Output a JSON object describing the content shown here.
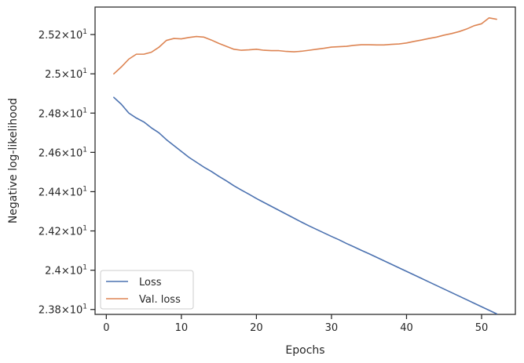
{
  "chart_data": {
    "type": "line",
    "xlabel": "Epochs",
    "ylabel": "Negative log-likelihood",
    "xlim": [
      -1.5,
      54.5
    ],
    "ylim": [
      23.775,
      25.34
    ],
    "x_ticks": [
      0,
      10,
      20,
      30,
      40,
      50
    ],
    "y_ticks": [
      {
        "value": 23.8,
        "mantissa": "2.38",
        "base": "10",
        "exp": "1"
      },
      {
        "value": 24.0,
        "mantissa": "2.4",
        "base": "10",
        "exp": "1"
      },
      {
        "value": 24.2,
        "mantissa": "2.42",
        "base": "10",
        "exp": "1"
      },
      {
        "value": 24.4,
        "mantissa": "2.44",
        "base": "10",
        "exp": "1"
      },
      {
        "value": 24.6,
        "mantissa": "2.46",
        "base": "10",
        "exp": "1"
      },
      {
        "value": 24.8,
        "mantissa": "2.48",
        "base": "10",
        "exp": "1"
      },
      {
        "value": 25.0,
        "mantissa": "2.5",
        "base": "10",
        "exp": "1"
      },
      {
        "value": 25.2,
        "mantissa": "2.52",
        "base": "10",
        "exp": "1"
      }
    ],
    "grid": false,
    "legend_position": "lower-left",
    "series": [
      {
        "name": "Loss",
        "color": "#4c72b0",
        "x": [
          1,
          2,
          3,
          4,
          5,
          6,
          7,
          8,
          9,
          10,
          11,
          12,
          13,
          14,
          15,
          16,
          17,
          18,
          19,
          20,
          21,
          22,
          23,
          24,
          25,
          26,
          27,
          28,
          29,
          30,
          31,
          32,
          33,
          34,
          35,
          36,
          37,
          38,
          39,
          40,
          41,
          42,
          43,
          44,
          45,
          46,
          47,
          48,
          49,
          50,
          51,
          52
        ],
        "values": [
          24.88,
          24.845,
          24.8,
          24.775,
          24.755,
          24.725,
          24.7,
          24.665,
          24.635,
          24.605,
          24.575,
          24.55,
          24.525,
          24.503,
          24.478,
          24.455,
          24.43,
          24.408,
          24.387,
          24.365,
          24.345,
          24.325,
          24.305,
          24.285,
          24.265,
          24.245,
          24.226,
          24.208,
          24.19,
          24.172,
          24.155,
          24.136,
          24.119,
          24.101,
          24.084,
          24.066,
          24.048,
          24.03,
          24.012,
          23.994,
          23.976,
          23.958,
          23.94,
          23.922,
          23.904,
          23.886,
          23.868,
          23.85,
          23.832,
          23.814,
          23.796,
          23.778
        ]
      },
      {
        "name": "Val. loss",
        "color": "#dd8452",
        "x": [
          1,
          2,
          3,
          4,
          5,
          6,
          7,
          8,
          9,
          10,
          11,
          12,
          13,
          14,
          15,
          16,
          17,
          18,
          19,
          20,
          21,
          22,
          23,
          24,
          25,
          26,
          27,
          28,
          29,
          30,
          31,
          32,
          33,
          34,
          35,
          36,
          37,
          38,
          39,
          40,
          41,
          42,
          43,
          44,
          45,
          46,
          47,
          48,
          49,
          50,
          51,
          52
        ],
        "values": [
          25.0,
          25.035,
          25.075,
          25.1,
          25.1,
          25.11,
          25.135,
          25.17,
          25.18,
          25.178,
          25.185,
          25.19,
          25.187,
          25.172,
          25.155,
          25.14,
          25.125,
          25.12,
          25.122,
          25.125,
          25.12,
          25.118,
          25.118,
          25.114,
          25.112,
          25.115,
          25.12,
          25.125,
          25.13,
          25.136,
          25.138,
          25.14,
          25.145,
          25.148,
          25.148,
          25.147,
          25.147,
          25.15,
          25.152,
          25.157,
          25.165,
          25.172,
          25.18,
          25.187,
          25.197,
          25.205,
          25.215,
          25.228,
          25.245,
          25.255,
          25.285,
          25.278
        ]
      }
    ]
  }
}
